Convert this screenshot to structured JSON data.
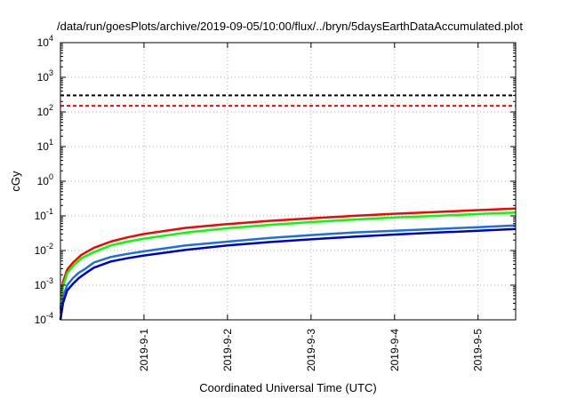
{
  "chart_data": {
    "type": "line",
    "title": "/data/run/goesPlots/archive/2019-09-05/10:00/flux/../bryn/5daysEarthDataAccumulated.plot",
    "xlabel": "Coordinated Universal Time (UTC)",
    "ylabel": "cGy",
    "y_scale": "log",
    "ylim": [
      0.0001,
      10000
    ],
    "xlim": [
      0,
      5.45
    ],
    "grid": true,
    "legend": "none",
    "x_ticks": [
      {
        "pos": 1,
        "label": "2019-9-1"
      },
      {
        "pos": 2,
        "label": "2019-9-2"
      },
      {
        "pos": 3,
        "label": "2019-9-3"
      },
      {
        "pos": 4,
        "label": "2019-9-4"
      },
      {
        "pos": 5,
        "label": "2019-9-5"
      }
    ],
    "y_ticks": [
      {
        "value": 0.0001,
        "base": "10",
        "exp": "-4"
      },
      {
        "value": 0.001,
        "base": "10",
        "exp": "-3"
      },
      {
        "value": 0.01,
        "base": "10",
        "exp": "-2"
      },
      {
        "value": 0.1,
        "base": "10",
        "exp": "-1"
      },
      {
        "value": 1,
        "base": "10",
        "exp": "0"
      },
      {
        "value": 10,
        "base": "10",
        "exp": "1"
      },
      {
        "value": 100,
        "base": "10",
        "exp": "2"
      },
      {
        "value": 1000,
        "base": "10",
        "exp": "3"
      },
      {
        "value": 10000,
        "base": "10",
        "exp": "4"
      }
    ],
    "thresholds": [
      {
        "value": 300,
        "color": "#000000",
        "style": "dashed"
      },
      {
        "value": 150,
        "color": "#ff0000",
        "style": "dashed"
      }
    ],
    "series": [
      {
        "color": "#ff0000",
        "points": [
          [
            0,
            0.0002
          ],
          [
            0.03,
            0.0012
          ],
          [
            0.08,
            0.0028
          ],
          [
            0.15,
            0.0045
          ],
          [
            0.25,
            0.0075
          ],
          [
            0.4,
            0.012
          ],
          [
            0.6,
            0.018
          ],
          [
            0.8,
            0.024
          ],
          [
            1,
            0.03
          ],
          [
            1.5,
            0.045
          ],
          [
            2,
            0.058
          ],
          [
            2.5,
            0.072
          ],
          [
            3,
            0.085
          ],
          [
            3.5,
            0.1
          ],
          [
            4,
            0.115
          ],
          [
            4.5,
            0.13
          ],
          [
            5,
            0.147
          ],
          [
            5.45,
            0.162
          ]
        ]
      },
      {
        "color": "#00ff00",
        "points": [
          [
            0,
            0.00015
          ],
          [
            0.03,
            0.0009
          ],
          [
            0.08,
            0.0022
          ],
          [
            0.15,
            0.0036
          ],
          [
            0.25,
            0.006
          ],
          [
            0.4,
            0.009
          ],
          [
            0.6,
            0.014
          ],
          [
            0.8,
            0.018
          ],
          [
            1,
            0.022
          ],
          [
            1.5,
            0.033
          ],
          [
            2,
            0.044
          ],
          [
            2.5,
            0.055
          ],
          [
            3,
            0.066
          ],
          [
            3.5,
            0.078
          ],
          [
            4,
            0.09
          ],
          [
            4.5,
            0.1
          ],
          [
            5,
            0.113
          ],
          [
            5.45,
            0.125
          ]
        ]
      },
      {
        "color": "#1a6ee8",
        "points": [
          [
            0,
            0.0001
          ],
          [
            0.03,
            0.00045
          ],
          [
            0.08,
            0.001
          ],
          [
            0.15,
            0.0016
          ],
          [
            0.22,
            0.0023
          ],
          [
            0.3,
            0.003
          ],
          [
            0.4,
            0.0045
          ],
          [
            0.6,
            0.0065
          ],
          [
            0.8,
            0.008
          ],
          [
            1,
            0.0095
          ],
          [
            1.5,
            0.014
          ],
          [
            2,
            0.018
          ],
          [
            2.5,
            0.023
          ],
          [
            3,
            0.028
          ],
          [
            3.5,
            0.033
          ],
          [
            4,
            0.037
          ],
          [
            4.5,
            0.042
          ],
          [
            5,
            0.047
          ],
          [
            5.45,
            0.053
          ]
        ]
      },
      {
        "color": "#0000cc",
        "points": [
          [
            0,
            0.0001
          ],
          [
            0.03,
            0.0003
          ],
          [
            0.08,
            0.0007
          ],
          [
            0.15,
            0.0011
          ],
          [
            0.22,
            0.0016
          ],
          [
            0.3,
            0.0022
          ],
          [
            0.4,
            0.0032
          ],
          [
            0.6,
            0.0048
          ],
          [
            0.8,
            0.006
          ],
          [
            1,
            0.0072
          ],
          [
            1.5,
            0.0105
          ],
          [
            2,
            0.014
          ],
          [
            2.5,
            0.0175
          ],
          [
            3,
            0.021
          ],
          [
            3.5,
            0.025
          ],
          [
            4,
            0.029
          ],
          [
            4.5,
            0.033
          ],
          [
            5,
            0.037
          ],
          [
            5.45,
            0.042
          ]
        ]
      }
    ]
  }
}
